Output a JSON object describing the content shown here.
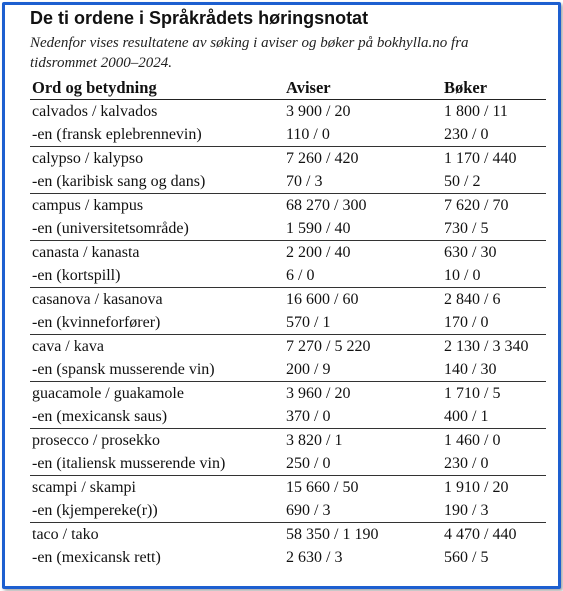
{
  "title": "De ti ordene i Språkrådets høringsnotat",
  "subtitle": "Nedenfor vises resultatene av søking i aviser og bøker på bokhylla.no fra tidsrommet 2000–2024.",
  "table": {
    "headers": [
      "Ord og betydning",
      "Aviser",
      "Bøker"
    ],
    "rows": [
      [
        "calvados / kalvados",
        "3 900 / 20",
        "1 800 / 11"
      ],
      [
        "-en (fransk eplebrennevin)",
        "110 / 0",
        "230 / 0"
      ],
      [
        "calypso / kalypso",
        "7 260 / 420",
        "1 170 / 440"
      ],
      [
        "-en (karibisk sang og dans)",
        "70 / 3",
        "50 / 2"
      ],
      [
        "campus / kampus",
        "68 270 / 300",
        "7 620 / 70"
      ],
      [
        "-en (universitetsområde)",
        "1 590 / 40",
        "730 / 5"
      ],
      [
        "canasta / kanasta",
        "2 200 / 40",
        "630 / 30"
      ],
      [
        "-en (kortspill)",
        "6 / 0",
        "10 / 0"
      ],
      [
        "casanova / kasanova",
        "16 600 / 60",
        "2 840 / 6"
      ],
      [
        "-en (kvinneforfører)",
        "570 / 1",
        "170 / 0"
      ],
      [
        "cava / kava",
        "7 270 / 5 220",
        "2 130 / 3 340"
      ],
      [
        "-en (spansk musserende vin)",
        "200 / 9",
        "140 / 30"
      ],
      [
        "guacamole / guakamole",
        "3 960 / 20",
        "1 710 / 5"
      ],
      [
        "-en (mexicansk saus)",
        "370 / 0",
        "400 / 1"
      ],
      [
        "prosecco / prosekko",
        "3 820 / 1",
        "1 460 / 0"
      ],
      [
        "-en (italiensk musserende vin)",
        "250 / 0",
        "230 / 0"
      ],
      [
        "scampi / skampi",
        "15 660 / 50",
        "1 910 / 20"
      ],
      [
        "-en (kjempereke(r))",
        "690 / 3",
        "190 / 3"
      ],
      [
        "taco / tako",
        "58 350 / 1 190",
        "4 470 / 440"
      ],
      [
        "-en (mexicansk rett)",
        "2 630 / 3",
        "560 / 5"
      ]
    ]
  },
  "colors": {
    "frame": "#1d5fd0"
  }
}
